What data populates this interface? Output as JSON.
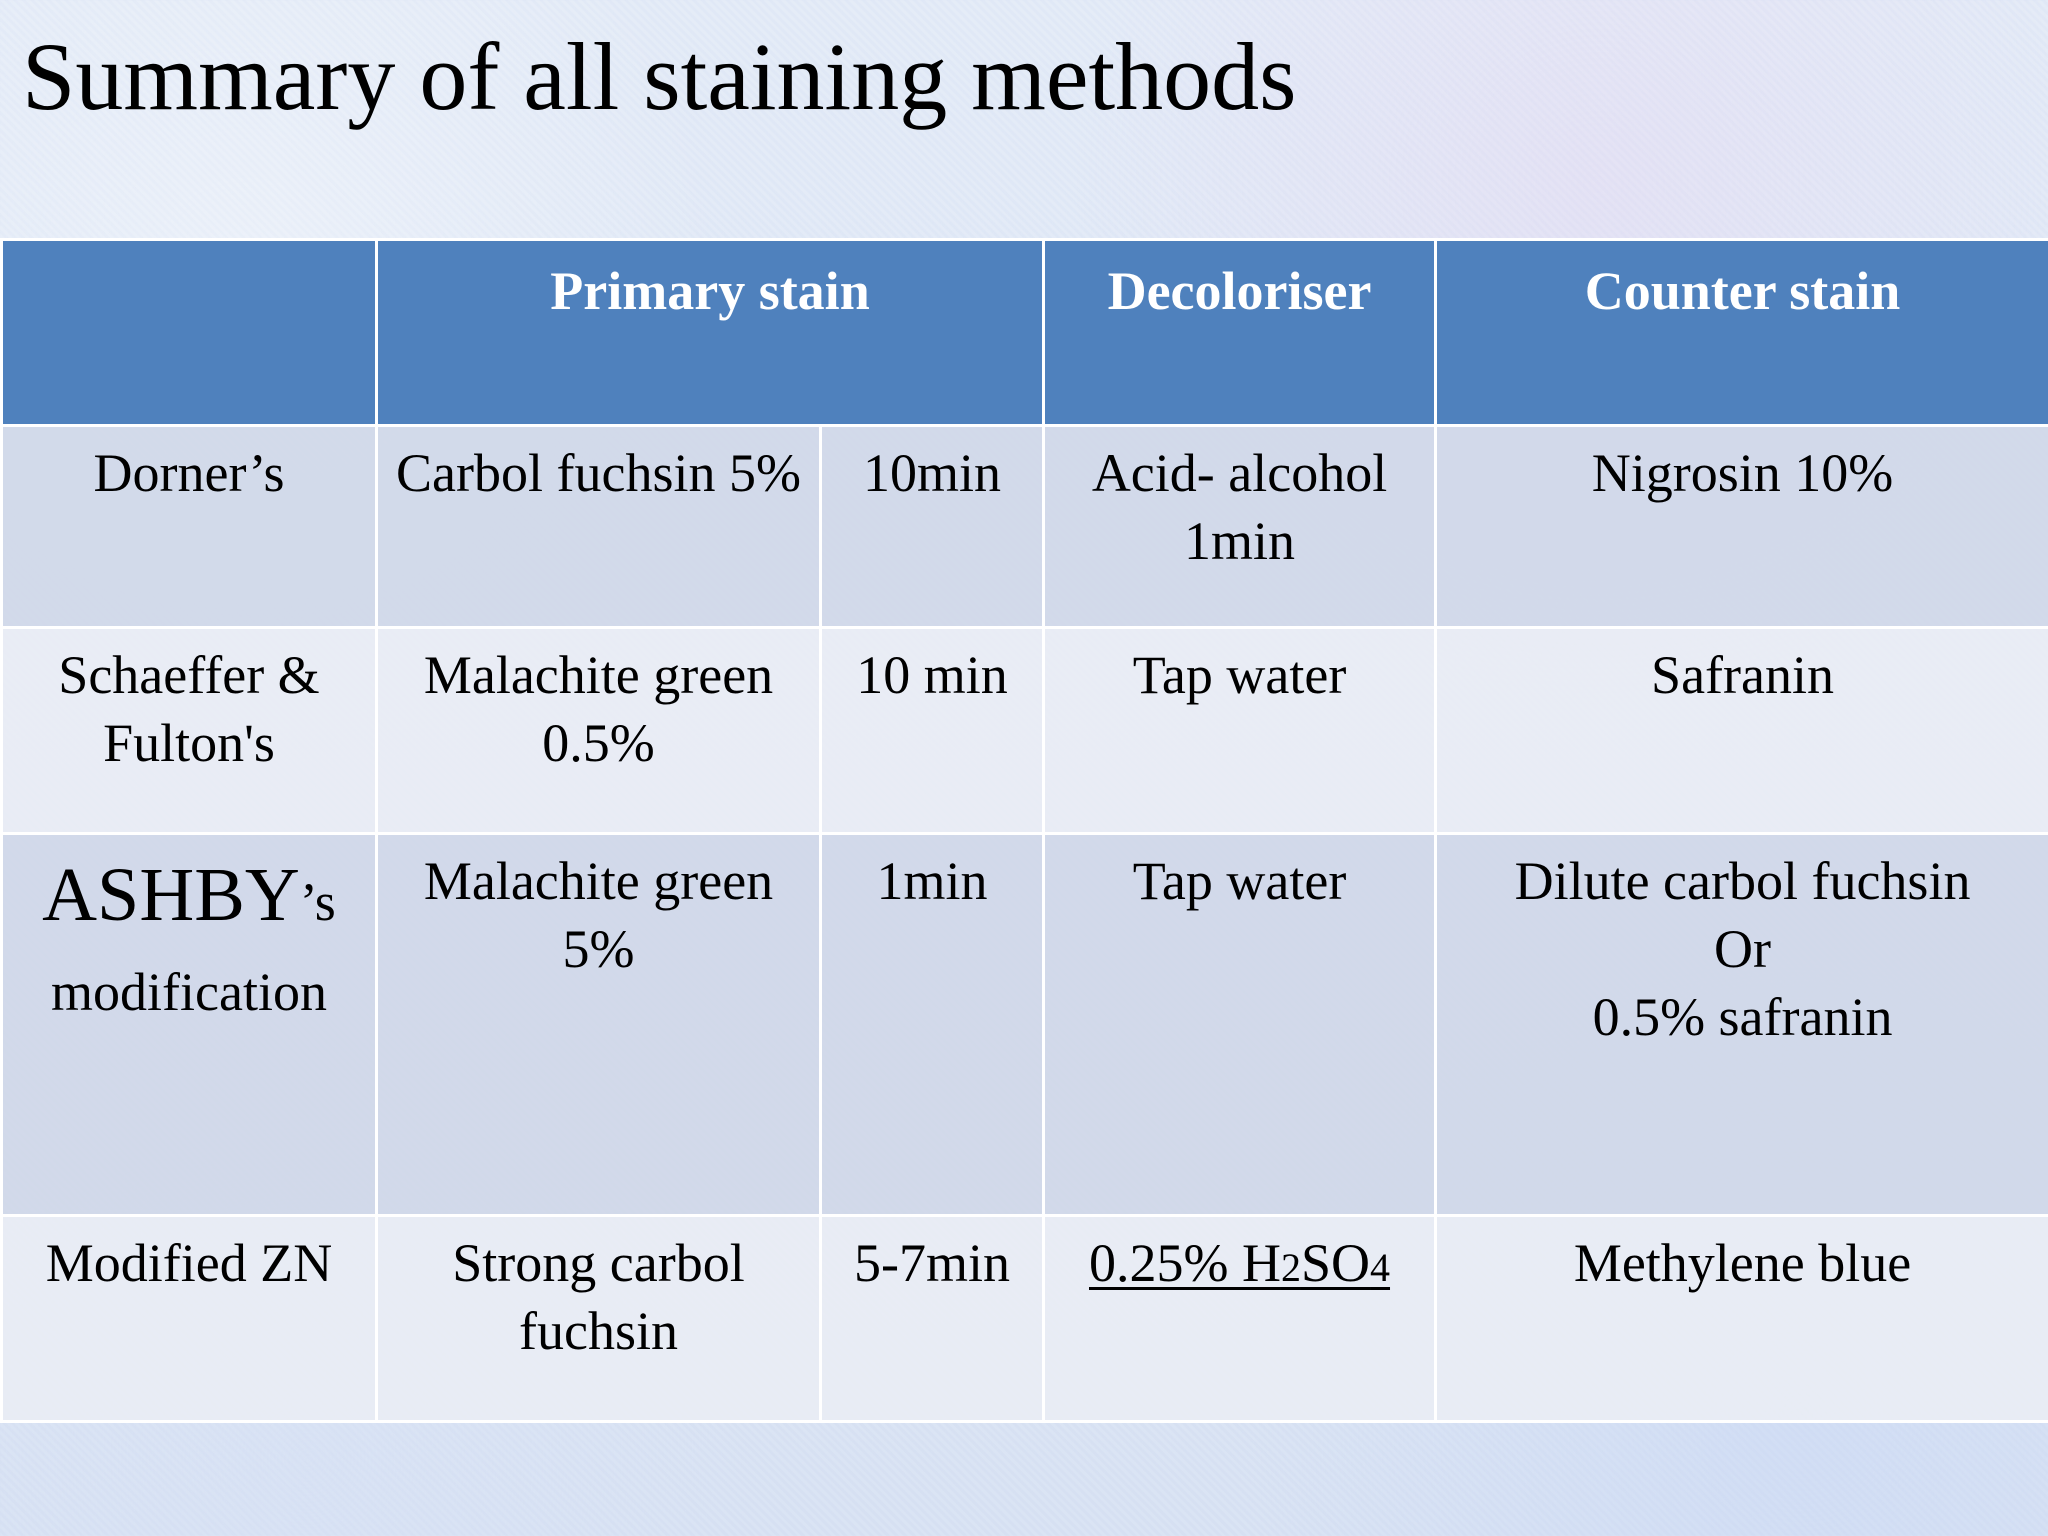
{
  "title": "Summary of all staining methods",
  "table": {
    "headers": {
      "method": "",
      "primary_stain": "Primary stain",
      "decoloriser": "Decoloriser",
      "counter_stain": "Counter stain"
    },
    "rows": [
      {
        "method": "Dorner’s",
        "primary_stain": "Carbol fuchsin 5%",
        "time": "10min",
        "decoloriser": "Acid- alcohol 1min",
        "counter_stain": "Nigrosin 10%"
      },
      {
        "method": "Schaeffer & Fulton's",
        "primary_stain": "Malachite green 0.5%",
        "time": "10 min",
        "decoloriser": "Tap water",
        "counter_stain": "Safranin"
      },
      {
        "method_main": "ASHBY",
        "method_suffix": "’s",
        "method_sub": "modification",
        "primary_stain": "Malachite green 5%",
        "time": "1min",
        "decoloriser": "Tap water",
        "counter_stain_lines": [
          "Dilute carbol fuchsin",
          "Or",
          "0.5% safranin"
        ]
      },
      {
        "method": "Modified ZN",
        "primary_stain": "Strong carbol fuchsin",
        "time": "5-7min",
        "decoloriser_parts": [
          "0.25% H",
          "2",
          "SO",
          "4"
        ],
        "counter_stain": "Methylene blue"
      }
    ]
  }
}
